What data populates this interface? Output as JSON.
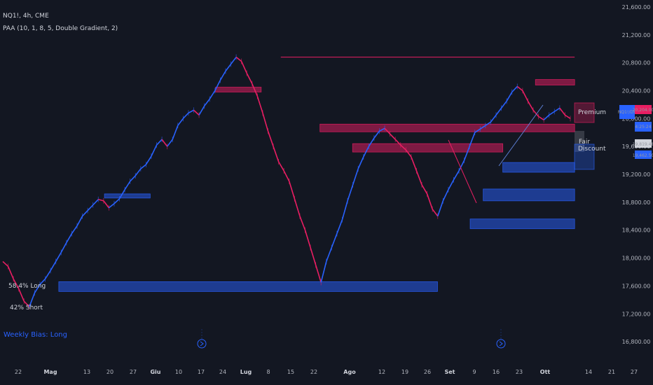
{
  "header": {
    "symbol_line": "NQ1!, 4h, CME",
    "indicator_line": "PAA (10, 1, 8, 5, Double Gradient, 2)"
  },
  "bias_label": "Weekly Bias: Long",
  "stats": {
    "long": "58.4% Long",
    "short": "42% Short"
  },
  "zone_labels": {
    "premium": "Premium",
    "fair": "Fair",
    "discount": "Discount"
  },
  "price_badges": {
    "symbol": "NQ1!/DX",
    "red_value": "20,204.00",
    "blue_value": "4:25:24",
    "gray_value": "19,819.48",
    "blue2_value": "19,462.50"
  },
  "chart_data": {
    "type": "line",
    "x_axis_ticks": [
      "22",
      "Mag",
      "13",
      "20",
      "27",
      "Giu",
      "10",
      "17",
      "24",
      "Lug",
      "8",
      "15",
      "22",
      "Ago",
      "12",
      "19",
      "26",
      "Set",
      "9",
      "16",
      "23",
      "Ott",
      "14",
      "21",
      "27"
    ],
    "y_axis_ticks": [
      "21,600.00",
      "21,200.00",
      "20,800.00",
      "20,400.00",
      "20,000.00",
      "19,600.00",
      "19,200.00",
      "18,800.00",
      "18,400.00",
      "18,000.00",
      "17,600.00",
      "17,200.00",
      "16,800.00"
    ],
    "ylim": [
      16500,
      21700
    ],
    "colors": {
      "bull": "#2962ff",
      "bear": "#e91e63",
      "neutral": "#787b86"
    },
    "price_path": [
      [
        0,
        17950
      ],
      [
        3,
        17880
      ],
      [
        6,
        17700
      ],
      [
        9,
        17560
      ],
      [
        12,
        17380
      ],
      [
        15,
        17300
      ],
      [
        18,
        17500
      ],
      [
        21,
        17620
      ],
      [
        24,
        17700
      ],
      [
        27,
        17820
      ],
      [
        30,
        17950
      ],
      [
        33,
        18080
      ],
      [
        36,
        18220
      ],
      [
        39,
        18350
      ],
      [
        42,
        18460
      ],
      [
        45,
        18600
      ],
      [
        48,
        18680
      ],
      [
        51,
        18760
      ],
      [
        54,
        18840
      ],
      [
        57,
        18820
      ],
      [
        60,
        18720
      ],
      [
        63,
        18780
      ],
      [
        66,
        18850
      ],
      [
        69,
        18980
      ],
      [
        72,
        19100
      ],
      [
        75,
        19180
      ],
      [
        78,
        19280
      ],
      [
        81,
        19340
      ],
      [
        84,
        19460
      ],
      [
        87,
        19620
      ],
      [
        90,
        19700
      ],
      [
        93,
        19600
      ],
      [
        96,
        19700
      ],
      [
        99,
        19900
      ],
      [
        102,
        20000
      ],
      [
        105,
        20080
      ],
      [
        108,
        20120
      ],
      [
        111,
        20050
      ],
      [
        114,
        20180
      ],
      [
        117,
        20280
      ],
      [
        120,
        20400
      ],
      [
        123,
        20550
      ],
      [
        126,
        20680
      ],
      [
        129,
        20780
      ],
      [
        132,
        20880
      ],
      [
        135,
        20820
      ],
      [
        138,
        20650
      ],
      [
        141,
        20500
      ],
      [
        144,
        20320
      ],
      [
        147,
        20080
      ],
      [
        150,
        19820
      ],
      [
        153,
        19600
      ],
      [
        156,
        19380
      ],
      [
        159,
        19250
      ],
      [
        162,
        19100
      ],
      [
        165,
        18850
      ],
      [
        168,
        18600
      ],
      [
        171,
        18400
      ],
      [
        174,
        18150
      ],
      [
        177,
        17900
      ],
      [
        180,
        17650
      ],
      [
        183,
        17950
      ],
      [
        186,
        18150
      ],
      [
        189,
        18350
      ],
      [
        192,
        18550
      ],
      [
        195,
        18820
      ],
      [
        198,
        19050
      ],
      [
        201,
        19280
      ],
      [
        204,
        19450
      ],
      [
        207,
        19600
      ],
      [
        210,
        19720
      ],
      [
        213,
        19820
      ],
      [
        216,
        19860
      ],
      [
        219,
        19780
      ],
      [
        222,
        19700
      ],
      [
        225,
        19620
      ],
      [
        228,
        19550
      ],
      [
        231,
        19450
      ],
      [
        234,
        19250
      ],
      [
        237,
        19050
      ],
      [
        240,
        18920
      ],
      [
        243,
        18700
      ],
      [
        246,
        18600
      ],
      [
        249,
        18820
      ],
      [
        252,
        18980
      ],
      [
        255,
        19120
      ],
      [
        258,
        19250
      ],
      [
        261,
        19400
      ],
      [
        264,
        19600
      ],
      [
        267,
        19800
      ],
      [
        270,
        19850
      ],
      [
        273,
        19900
      ],
      [
        276,
        19950
      ],
      [
        279,
        20050
      ],
      [
        282,
        20150
      ],
      [
        285,
        20250
      ],
      [
        288,
        20380
      ],
      [
        291,
        20460
      ],
      [
        294,
        20400
      ],
      [
        297,
        20250
      ],
      [
        300,
        20120
      ],
      [
        303,
        20030
      ],
      [
        306,
        19980
      ],
      [
        309,
        20050
      ],
      [
        312,
        20100
      ],
      [
        315,
        20150
      ],
      [
        318,
        20050
      ],
      [
        321,
        20000
      ]
    ],
    "zones": [
      {
        "type": "supply",
        "y1": 20450,
        "y2": 20380,
        "x1": 0.33,
        "x2": 0.4
      },
      {
        "type": "supply",
        "y1": 19920,
        "y2": 19810,
        "x1": 0.49,
        "x2": 0.88
      },
      {
        "type": "supply",
        "y1": 19640,
        "y2": 19520,
        "x1": 0.54,
        "x2": 0.77
      },
      {
        "type": "supply",
        "y1": 20560,
        "y2": 20480,
        "x1": 0.82,
        "x2": 0.88
      },
      {
        "type": "demand",
        "y1": 18920,
        "y2": 18860,
        "x1": 0.16,
        "x2": 0.23
      },
      {
        "type": "demand",
        "y1": 17660,
        "y2": 17520,
        "x1": 0.09,
        "x2": 0.67
      },
      {
        "type": "demand",
        "y1": 19370,
        "y2": 19230,
        "x1": 0.77,
        "x2": 0.88
      },
      {
        "type": "demand",
        "y1": 18990,
        "y2": 18820,
        "x1": 0.74,
        "x2": 0.88
      },
      {
        "type": "demand",
        "y1": 18560,
        "y2": 18420,
        "x1": 0.72,
        "x2": 0.88
      }
    ],
    "levels": [
      {
        "y": 20880,
        "x1": 0.43,
        "x2": 0.88
      }
    ]
  }
}
